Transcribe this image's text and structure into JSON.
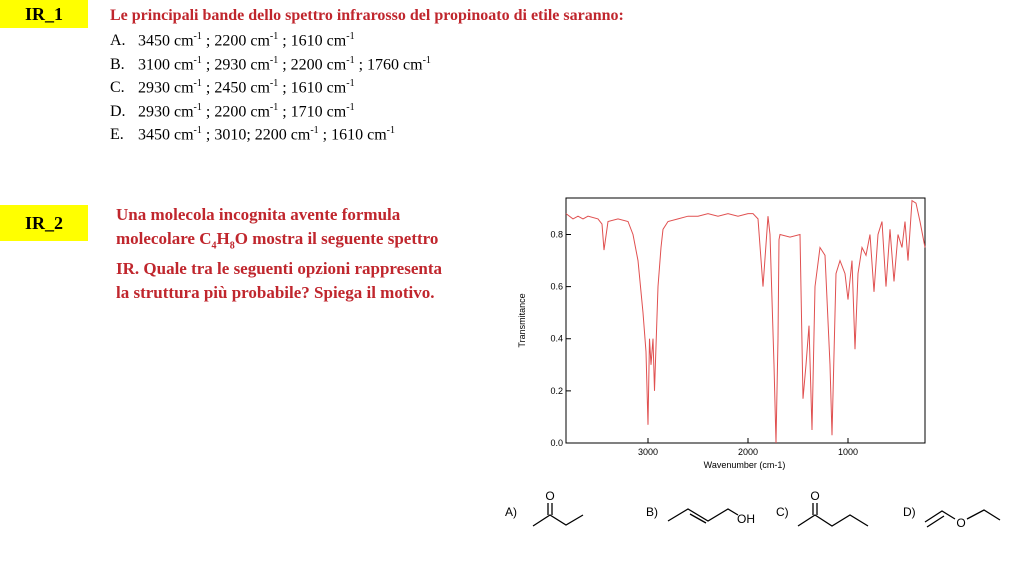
{
  "ir1": {
    "label": "IR_1",
    "question": "Le principali bande dello spettro infrarosso del propinoato di etile saranno:",
    "options": [
      {
        "letter": "A.",
        "parts": [
          "3450 cm",
          "-1",
          " ; 2200 cm",
          "-1",
          " ; 1610 cm",
          "-1"
        ]
      },
      {
        "letter": "B.",
        "parts": [
          "3100 cm",
          "-1",
          " ; 2930 cm",
          "-1",
          " ; 2200 cm",
          "-1",
          " ; 1760 cm",
          "-1"
        ]
      },
      {
        "letter": "C.",
        "parts": [
          "2930 cm",
          "-1",
          " ; 2450 cm",
          "-1",
          " ; 1610 cm",
          "-1"
        ]
      },
      {
        "letter": "D.",
        "parts": [
          "2930 cm",
          "-1",
          " ; 2200 cm",
          "-1",
          " ; 1710 cm",
          "-1"
        ]
      },
      {
        "letter": "E.",
        "parts": [
          "3450 cm",
          "-1",
          " ; 3010; 2200 cm",
          "-1",
          " ; 1610 cm",
          "-1"
        ]
      }
    ]
  },
  "ir2": {
    "label": "IR_2",
    "question_parts": [
      "Una molecola incognita avente formula molecolare C",
      "4",
      "H",
      "8",
      "O mostra il seguente spettro IR. Quale tra le seguenti opzioni rappresenta la struttura più probabile? Spiega il motivo."
    ],
    "molecules": [
      {
        "label": "A)",
        "atoms": [
          "O"
        ]
      },
      {
        "label": "B)",
        "atoms": [
          "OH"
        ]
      },
      {
        "label": "C)",
        "atoms": [
          "O"
        ]
      },
      {
        "label": "D)",
        "atoms": [
          "O"
        ]
      }
    ]
  },
  "chart_data": {
    "type": "line",
    "xlabel": "Wavenumber (cm-1)",
    "ylabel": "Transmitance",
    "x": [
      3820,
      3750,
      3700,
      3650,
      3600,
      3500,
      3460,
      3440,
      3400,
      3300,
      3200,
      3150,
      3100,
      3050,
      3020,
      3000,
      2985,
      2970,
      2950,
      2935,
      2900,
      2870,
      2850,
      2800,
      2700,
      2600,
      2500,
      2400,
      2300,
      2200,
      2100,
      2000,
      1950,
      1900,
      1850,
      1800,
      1780,
      1740,
      1720,
      1700,
      1690,
      1680,
      1580,
      1480,
      1450,
      1420,
      1390,
      1360,
      1330,
      1280,
      1230,
      1180,
      1160,
      1120,
      1080,
      1030,
      1000,
      960,
      930,
      900,
      860,
      820,
      780,
      740,
      700,
      660,
      620,
      580,
      540,
      500,
      460,
      430,
      400,
      360,
      320,
      280,
      230
    ],
    "values": [
      0.88,
      0.86,
      0.87,
      0.86,
      0.87,
      0.86,
      0.84,
      0.74,
      0.85,
      0.86,
      0.85,
      0.8,
      0.7,
      0.5,
      0.35,
      0.07,
      0.4,
      0.3,
      0.4,
      0.2,
      0.6,
      0.75,
      0.82,
      0.85,
      0.86,
      0.87,
      0.87,
      0.88,
      0.87,
      0.88,
      0.87,
      0.88,
      0.88,
      0.86,
      0.6,
      0.87,
      0.8,
      0.3,
      0,
      0.4,
      0.78,
      0.8,
      0.79,
      0.8,
      0.17,
      0.3,
      0.45,
      0.05,
      0.6,
      0.75,
      0.72,
      0.3,
      0.03,
      0.65,
      0.7,
      0.65,
      0.55,
      0.7,
      0.36,
      0.65,
      0.75,
      0.72,
      0.8,
      0.58,
      0.8,
      0.85,
      0.6,
      0.82,
      0.62,
      0.8,
      0.75,
      0.85,
      0.7,
      0.93,
      0.92,
      0.85,
      0.75
    ],
    "color": "#e05050",
    "xlim": [
      3820,
      230
    ],
    "ylim": [
      0,
      0.94
    ],
    "xticks": [
      3000,
      2000,
      1000
    ],
    "yticks": [
      {
        "value": 0,
        "label": "0.0"
      },
      0.2,
      0.4,
      0.6,
      0.8
    ]
  }
}
